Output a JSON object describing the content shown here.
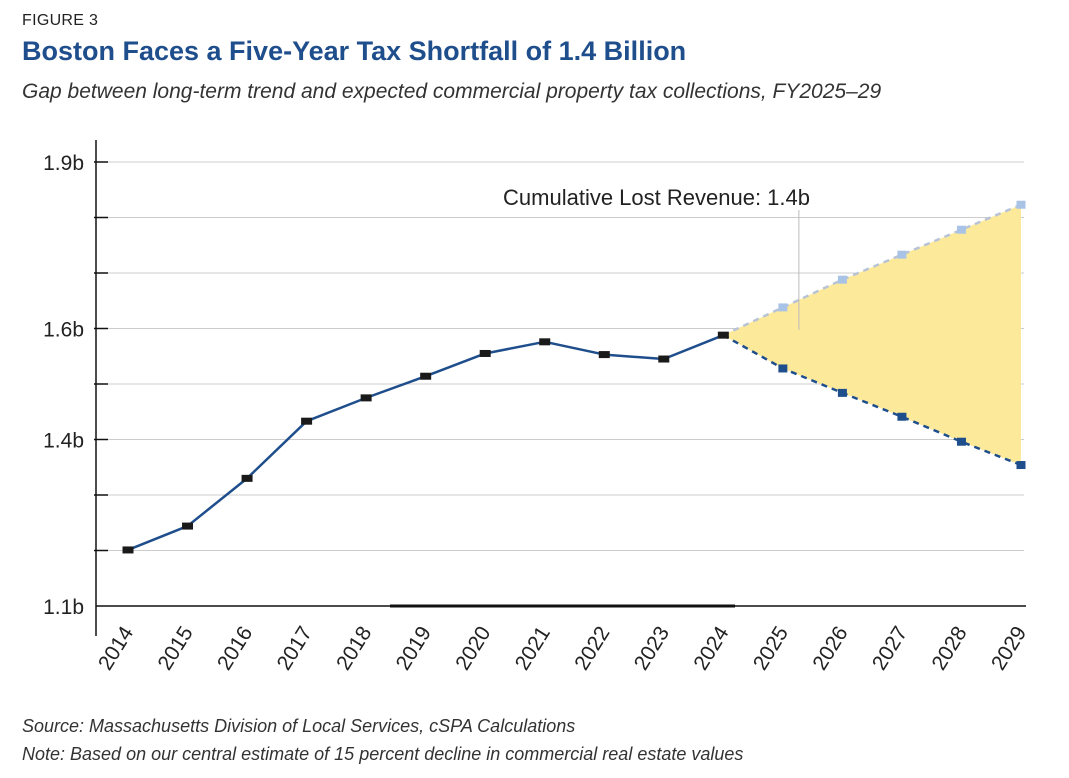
{
  "figure": {
    "label": "FIGURE 3",
    "title": "Boston Faces a Five-Year Tax Shortfall of 1.4 Billion",
    "subtitle": "Gap between long-term trend and expected commercial property tax collections, FY2025–29",
    "source": "Source: Massachusetts Division of Local Services, cSPA Calculations",
    "note": "Note: Based on our central estimate of 15 percent decline in commercial real estate values"
  },
  "colors": {
    "actual_line": "#1f4e8c",
    "actual_marker": "#1a1a1a",
    "projected_marker": "#1f4e8c",
    "trend_line": "#b8c4d6",
    "trend_marker": "#a9c3e6",
    "gap_fill": "#fde99a",
    "grid": "#cccccc",
    "axis": "#111111",
    "annotation_leader": "#bbbbbb"
  },
  "chart_data": {
    "type": "line",
    "title": "",
    "xlabel": "",
    "ylabel": "",
    "ylim": [
      1.1,
      1.9
    ],
    "y_ticks": [
      {
        "value": 1.9,
        "label": "1.9b"
      },
      {
        "value": 1.6,
        "label": "1.6b"
      },
      {
        "value": 1.4,
        "label": "1.4b"
      },
      {
        "value": 1.1,
        "label": "1.1b"
      }
    ],
    "y_gridlines": [
      1.2,
      1.3,
      1.4,
      1.5,
      1.6,
      1.7,
      1.8,
      1.9
    ],
    "grid": true,
    "legend": "none",
    "categories": [
      "2014",
      "2015",
      "2016",
      "2017",
      "2018",
      "2019",
      "2020",
      "2021",
      "2022",
      "2023",
      "2024",
      "2025",
      "2026",
      "2027",
      "2028",
      "2029"
    ],
    "series": [
      {
        "key": "actual",
        "style": "solid",
        "x": [
          "2014",
          "2015",
          "2016",
          "2017",
          "2018",
          "2019",
          "2020",
          "2021",
          "2022",
          "2023",
          "2024"
        ],
        "values": [
          1.201,
          1.244,
          1.33,
          1.433,
          1.475,
          1.514,
          1.555,
          1.576,
          1.553,
          1.545,
          1.588
        ]
      },
      {
        "key": "projected",
        "style": "dashed",
        "x": [
          "2024",
          "2025",
          "2026",
          "2027",
          "2028",
          "2029"
        ],
        "values": [
          1.588,
          1.528,
          1.484,
          1.441,
          1.396,
          1.354
        ]
      },
      {
        "key": "trend",
        "style": "dashed",
        "x": [
          "2024",
          "2025",
          "2026",
          "2027",
          "2028",
          "2029"
        ],
        "values": [
          1.588,
          1.638,
          1.688,
          1.733,
          1.778,
          1.823
        ]
      }
    ],
    "annotations": [
      {
        "text": "Cumulative Lost Revenue: 1.4b",
        "x": "2025",
        "y": 1.87
      }
    ]
  }
}
